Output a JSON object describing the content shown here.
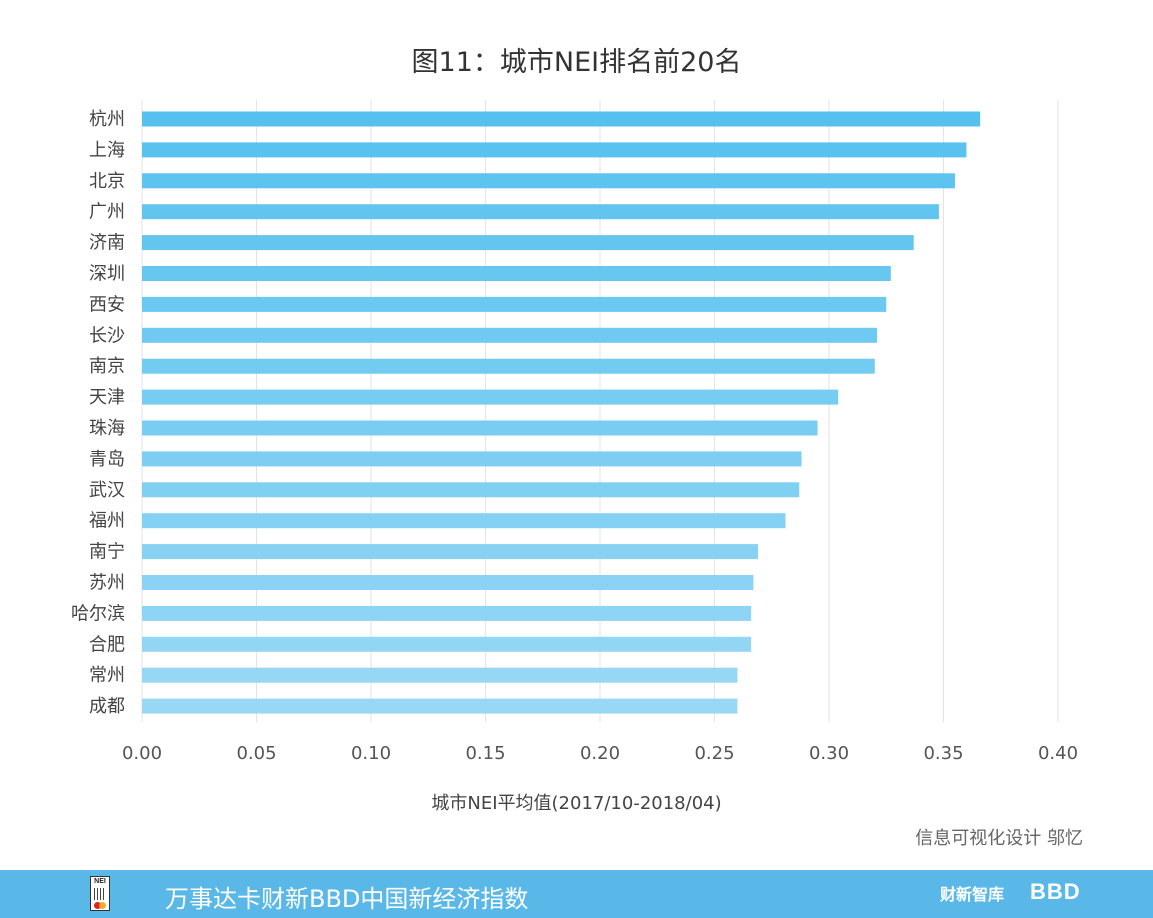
{
  "footer": {
    "title": "万事达卡财新BBD中国新经济指数",
    "logo_left_text": "NEI",
    "logo_middle_text": "财新智库",
    "logo_right_text": "BBD",
    "background_color": "#5ab8e9"
  },
  "credit": "信息可视化设计 邬忆",
  "chart_data": {
    "type": "bar",
    "orientation": "horizontal",
    "title": "图11：城市NEI排名前20名",
    "xlabel": "城市NEI平均值(2017/10-2018/04)",
    "ylabel": "",
    "xlim": [
      0,
      0.4
    ],
    "x_ticks": [
      "0.00",
      "0.05",
      "0.10",
      "0.15",
      "0.20",
      "0.25",
      "0.30",
      "0.35",
      "0.40"
    ],
    "grid": "vertical",
    "color_top": "#56c1ee",
    "color_bottom": "#99d8f5",
    "categories": [
      "杭州",
      "上海",
      "北京",
      "广州",
      "济南",
      "深圳",
      "西安",
      "长沙",
      "南京",
      "天津",
      "珠海",
      "青岛",
      "武汉",
      "福州",
      "南宁",
      "苏州",
      "哈尔滨",
      "合肥",
      "常州",
      "成都"
    ],
    "values": [
      0.366,
      0.36,
      0.355,
      0.348,
      0.337,
      0.327,
      0.325,
      0.321,
      0.32,
      0.304,
      0.295,
      0.288,
      0.287,
      0.281,
      0.269,
      0.267,
      0.266,
      0.266,
      0.26,
      0.26
    ]
  }
}
